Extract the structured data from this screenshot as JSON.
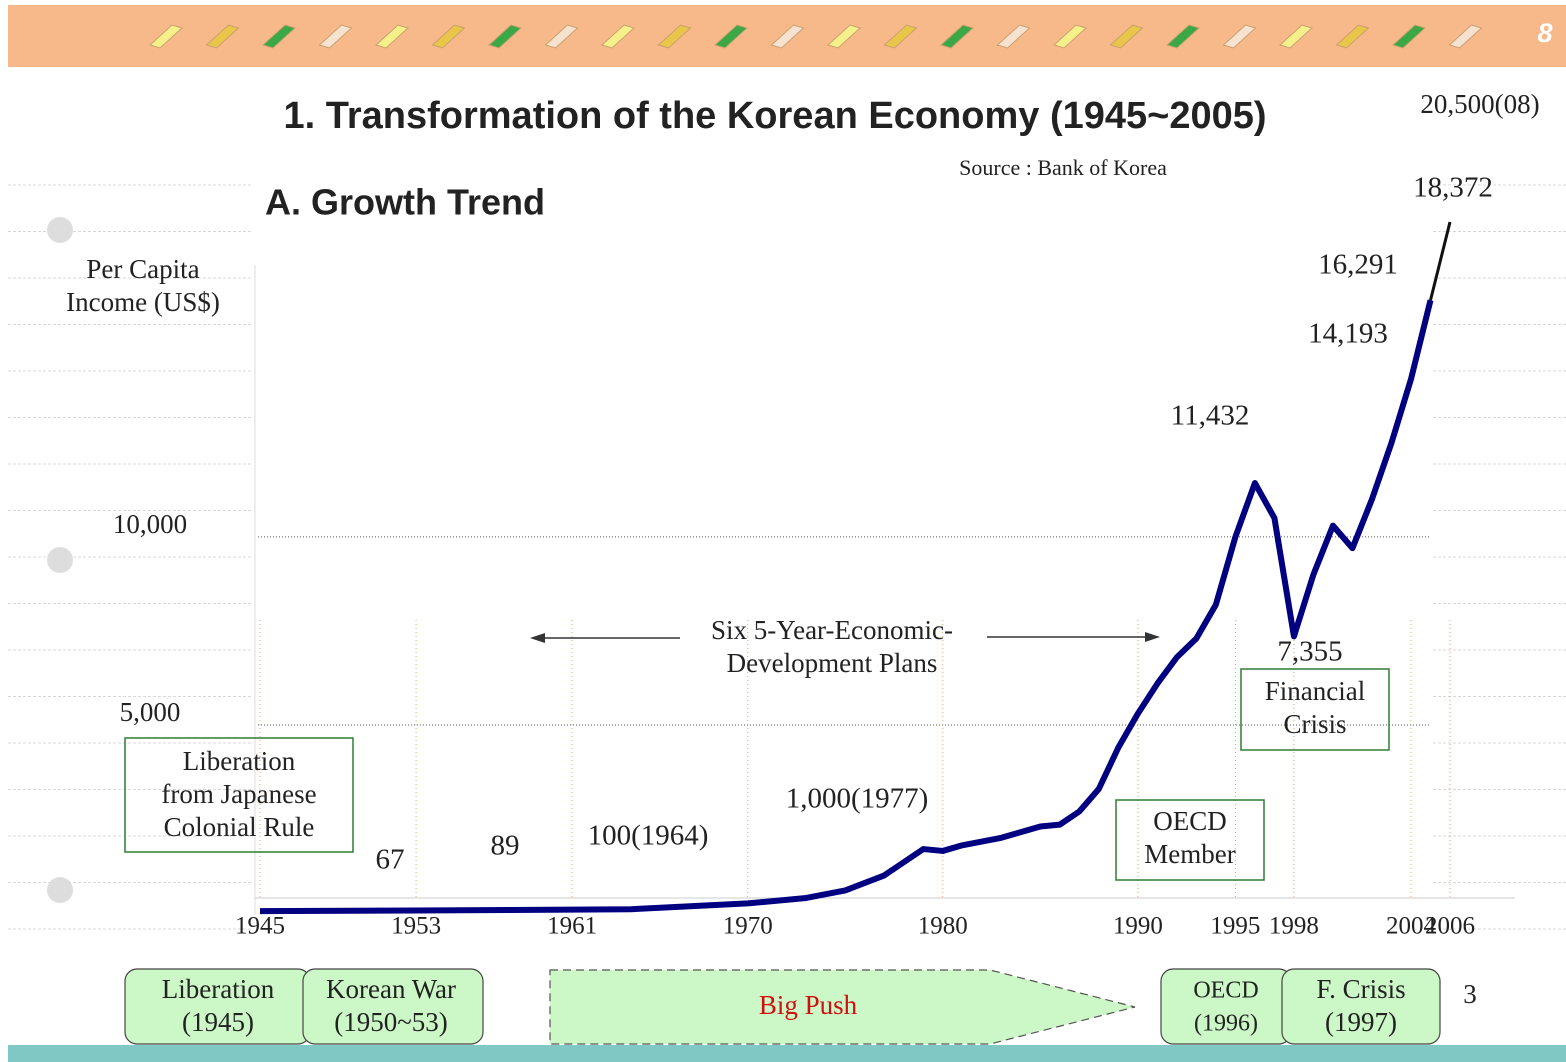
{
  "page_number": "8",
  "slide_number": "3",
  "chart_data": {
    "type": "line",
    "title": "1. Transformation of the Korean Economy (1945~2005)",
    "subtitle": "A. Growth Trend",
    "source": "Source : Bank of Korea",
    "ylabel_lines": [
      "Per Capita",
      "Income (US$)"
    ],
    "xlim": [
      1945,
      2006
    ],
    "ylim": [
      0,
      18000
    ],
    "xticks": [
      1945,
      1953,
      1961,
      1970,
      1980,
      1990,
      1995,
      1998,
      2004,
      2006
    ],
    "yticks": [
      {
        "value": 5000,
        "label": "5,000"
      },
      {
        "value": 10000,
        "label": "10,000"
      }
    ],
    "grid": true,
    "series": [
      {
        "color": "#000080",
        "x": [
          1945,
          1953,
          1961,
          1964,
          1970,
          1973,
          1975,
          1977,
          1979,
          1980,
          1981,
          1983,
          1985,
          1986,
          1987,
          1988,
          1989,
          1990,
          1991,
          1992,
          1993,
          1994,
          1995,
          1996,
          1997,
          1998,
          1999,
          2000,
          2001,
          2002,
          2003,
          2004,
          2005
        ],
        "values": [
          50,
          67,
          89,
          100,
          255,
          400,
          600,
          1000,
          1700,
          1650,
          1800,
          2000,
          2300,
          2350,
          2700,
          3300,
          4400,
          5300,
          6100,
          6800,
          7300,
          8200,
          10000,
          11432,
          10500,
          7355,
          9000,
          10300,
          9700,
          11000,
          12500,
          14193,
          16291
        ],
        "value_labels": [
          null,
          "67",
          "89",
          "100(1964)",
          null,
          null,
          null,
          "1,000(1977)",
          null,
          null,
          null,
          null,
          null,
          null,
          null,
          null,
          null,
          null,
          null,
          null,
          null,
          null,
          null,
          "11,432",
          null,
          "7,355",
          null,
          null,
          null,
          null,
          null,
          "14,193",
          "16,291"
        ]
      },
      {
        "color": "#111111",
        "x": [
          2005,
          2006
        ],
        "values": [
          16291,
          18372
        ],
        "value_labels": [
          null,
          "18,372"
        ]
      }
    ],
    "note": "20,500(08)",
    "annotations": [
      {
        "lines": [
          "Liberation",
          "from Japanese",
          "Colonial Rule"
        ]
      },
      {
        "lines": [
          "Six 5-Year-Economic-",
          "Development Plans"
        ]
      },
      {
        "lines": [
          "OECD",
          "Member"
        ]
      },
      {
        "lines": [
          "Financial",
          "Crisis"
        ]
      }
    ]
  },
  "timeline": [
    {
      "lines": [
        "Liberation",
        "(1945)"
      ]
    },
    {
      "lines": [
        "Korean War",
        "(1950~53)"
      ]
    },
    {
      "lines": [
        "Big Push"
      ]
    },
    {
      "lines": [
        "OECD",
        "(1996)"
      ]
    },
    {
      "lines": [
        "F. Crisis",
        "(1997)"
      ]
    }
  ]
}
